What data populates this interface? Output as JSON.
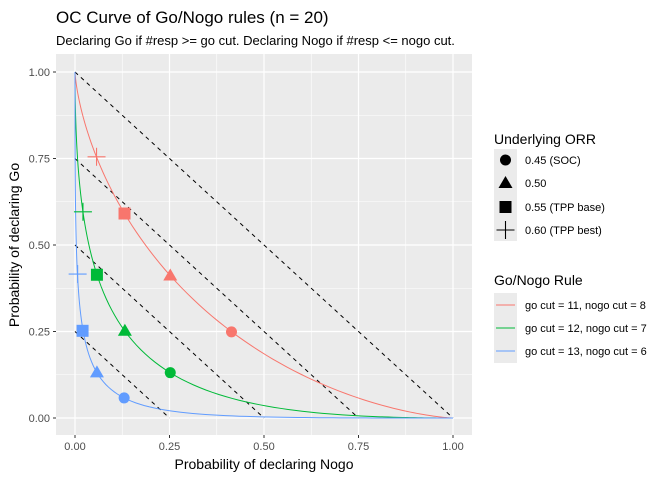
{
  "chart_data": {
    "type": "line",
    "title": "OC Curve of Go/Nogo rules (n = 20)",
    "subtitle": "Declaring Go if #resp >= go cut. Declaring Nogo if #resp <= nogo cut.",
    "xlabel": "Probability of declaring Nogo",
    "ylabel": "Probability of declaring Go",
    "xlim": [
      0,
      1
    ],
    "ylim": [
      0,
      1
    ],
    "x_ticks": [
      "0.00",
      "0.25",
      "0.50",
      "0.75",
      "1.00"
    ],
    "y_ticks": [
      "0.00",
      "0.25",
      "0.50",
      "0.75",
      "1.00"
    ],
    "x_tick_values": [
      0,
      0.25,
      0.5,
      0.75,
      1.0
    ],
    "y_tick_values": [
      0,
      0.25,
      0.5,
      0.75,
      1.0
    ],
    "grid": true,
    "n": 20,
    "reference_lines": {
      "style": "dashed",
      "description": "x + y = c",
      "c_values": [
        0.25,
        0.5,
        0.75,
        1.0
      ]
    },
    "legend_shape": {
      "title": "Underlying ORR",
      "placement": "right",
      "entries": [
        {
          "label": "0.45 (SOC)",
          "shape": "circle",
          "orr": 0.45
        },
        {
          "label": "0.50",
          "shape": "triangle",
          "orr": 0.5
        },
        {
          "label": "0.55 (TPP base)",
          "shape": "square",
          "orr": 0.55
        },
        {
          "label": "0.60 (TPP best)",
          "shape": "cross",
          "orr": 0.6
        }
      ]
    },
    "legend_color": {
      "title": "Go/Nogo Rule",
      "placement": "right",
      "entries": [
        {
          "label": "go cut = 11, nogo cut = 8",
          "color": "#F8766D",
          "go_cut": 11,
          "nogo_cut": 8
        },
        {
          "label": "go cut = 12, nogo cut = 7",
          "color": "#00BA38",
          "go_cut": 12,
          "nogo_cut": 7
        },
        {
          "label": "go cut = 13, nogo cut = 6",
          "color": "#619CFF",
          "go_cut": 13,
          "nogo_cut": 6
        }
      ]
    },
    "series": [
      {
        "name": "go cut = 11, nogo cut = 8",
        "color": "#F8766D",
        "points": [
          {
            "orr": 0.45,
            "shape": "circle",
            "x": 0.414,
            "y": 0.249
          },
          {
            "orr": 0.5,
            "shape": "triangle",
            "x": 0.252,
            "y": 0.412
          },
          {
            "orr": 0.55,
            "shape": "square",
            "x": 0.131,
            "y": 0.591
          },
          {
            "orr": 0.6,
            "shape": "cross",
            "x": 0.057,
            "y": 0.755
          }
        ]
      },
      {
        "name": "go cut = 12, nogo cut = 7",
        "color": "#00BA38",
        "points": [
          {
            "orr": 0.45,
            "shape": "circle",
            "x": 0.252,
            "y": 0.131
          },
          {
            "orr": 0.5,
            "shape": "triangle",
            "x": 0.132,
            "y": 0.252
          },
          {
            "orr": 0.55,
            "shape": "square",
            "x": 0.058,
            "y": 0.414
          },
          {
            "orr": 0.6,
            "shape": "cross",
            "x": 0.021,
            "y": 0.596
          }
        ]
      },
      {
        "name": "go cut = 13, nogo cut = 6",
        "color": "#619CFF",
        "points": [
          {
            "orr": 0.45,
            "shape": "circle",
            "x": 0.13,
            "y": 0.058
          },
          {
            "orr": 0.5,
            "shape": "triangle",
            "x": 0.058,
            "y": 0.132
          },
          {
            "orr": 0.55,
            "shape": "square",
            "x": 0.02,
            "y": 0.252
          },
          {
            "orr": 0.6,
            "shape": "cross",
            "x": 0.007,
            "y": 0.416
          }
        ]
      }
    ]
  }
}
